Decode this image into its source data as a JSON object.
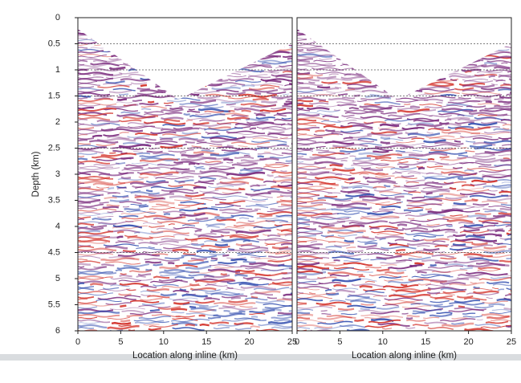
{
  "chart_data": [
    {
      "type": "seismic",
      "ylabel": "Depth (km)",
      "xlabel": "Location along inline (km)",
      "xlim": [
        0,
        25
      ],
      "xticks": [
        0,
        5,
        10,
        15,
        20,
        25
      ],
      "ylim": [
        0,
        6
      ],
      "yticks": [
        0,
        0.5,
        1,
        1.5,
        2,
        2.5,
        3,
        3.5,
        4,
        4.5,
        5,
        5.5,
        6
      ],
      "reference_depths": [
        0.5,
        1,
        1.5,
        2.5,
        4.5
      ]
    },
    {
      "type": "seismic",
      "xlabel": "Location along inline (km)",
      "xlim": [
        0,
        25
      ],
      "xticks": [
        0,
        5,
        10,
        15,
        20,
        25
      ],
      "ylim": [
        0,
        6
      ],
      "reference_depths": [
        0.5,
        1,
        1.5,
        2.5,
        4.5
      ]
    }
  ]
}
